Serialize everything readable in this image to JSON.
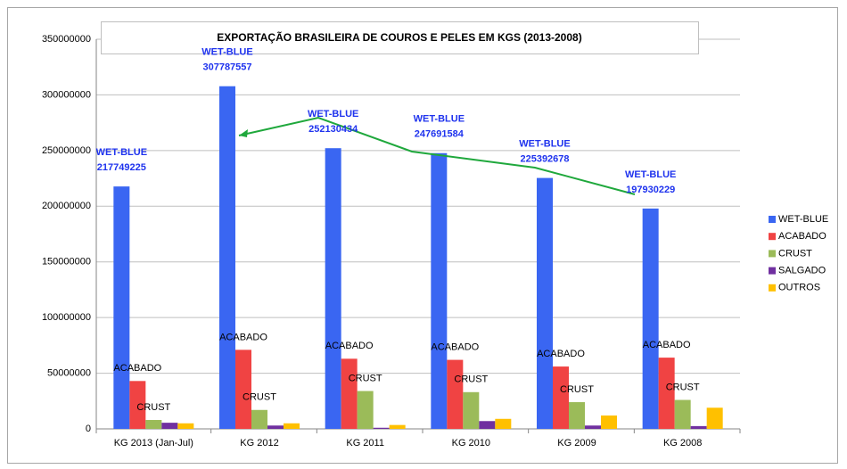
{
  "chart_data": {
    "type": "bar",
    "title": "EXPORTAÇÃO BRASILEIRA DE COUROS E PELES EM KGS (2013-2008)",
    "categories": [
      "KG 2013 (Jan-Jul)",
      "KG 2012",
      "KG 2011",
      "KG 2010",
      "KG 2009",
      "KG 2008"
    ],
    "series": [
      {
        "name": "WET-BLUE",
        "color": "#3a66f2",
        "values": [
          217749225,
          307787557,
          252130434,
          247691584,
          225392678,
          197930229
        ]
      },
      {
        "name": "ACABADO",
        "color": "#f04343",
        "values": [
          43000000,
          71000000,
          63000000,
          62000000,
          56000000,
          64000000
        ]
      },
      {
        "name": "CRUST",
        "color": "#9bbb59",
        "values": [
          8000000,
          17000000,
          34000000,
          33000000,
          24000000,
          26000000
        ]
      },
      {
        "name": "SALGADO",
        "color": "#7030a0",
        "values": [
          5500000,
          3000000,
          1000000,
          7000000,
          3000000,
          2500000
        ]
      },
      {
        "name": "OUTROS",
        "color": "#ffc000",
        "values": [
          5000000,
          5000000,
          3500000,
          9000000,
          12000000,
          19000000
        ]
      }
    ],
    "ylim": [
      0,
      350000000
    ],
    "yticks": [
      0,
      50000000,
      100000000,
      150000000,
      200000000,
      250000000,
      300000000,
      350000000
    ],
    "grid": true,
    "legend": "right"
  }
}
